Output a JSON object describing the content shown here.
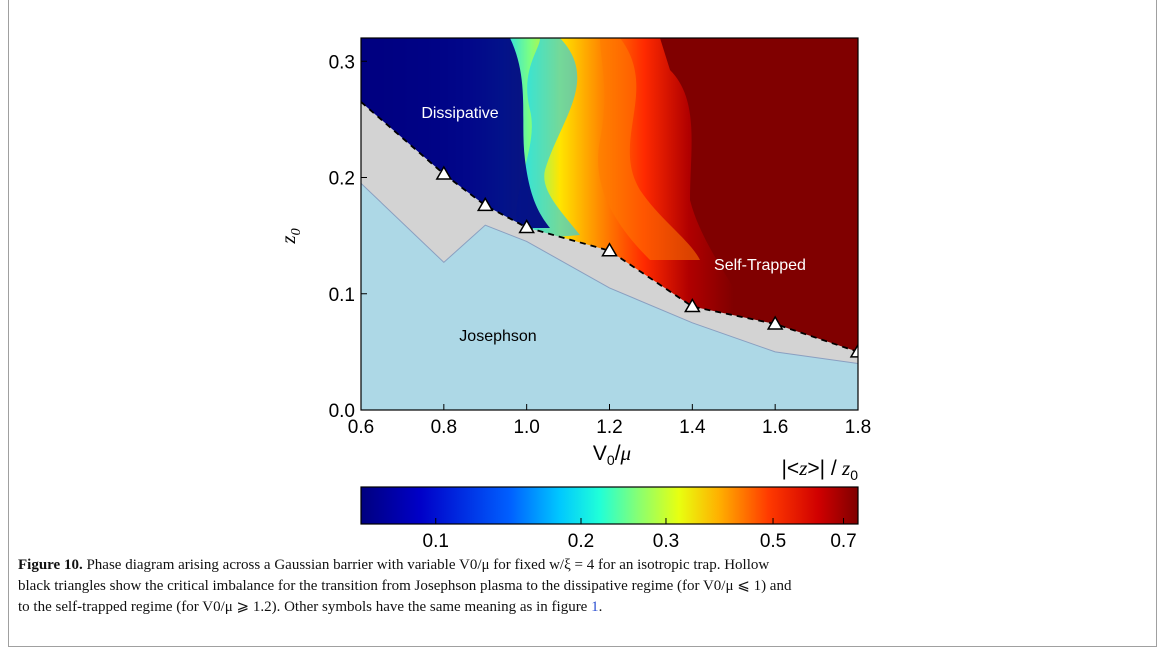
{
  "chart_data": {
    "type": "heatmap",
    "xlabel": "V0/μ",
    "ylabel": "z0",
    "xlim": [
      0.6,
      1.8
    ],
    "ylim": [
      0.0,
      0.32
    ],
    "x_ticks": [
      "0.6",
      "0.8",
      "1.0",
      "1.2",
      "1.4",
      "1.6",
      "1.8"
    ],
    "y_ticks": [
      "0.0",
      "0.1",
      "0.2",
      "0.3"
    ],
    "regions": {
      "dissipative": "Dissipative",
      "self_trapped": "Self-Trapped",
      "josephson": "Josephson"
    },
    "critical_imbalance": {
      "x": [
        0.6,
        0.8,
        0.9,
        1.0,
        1.2,
        1.4,
        1.6,
        1.8
      ],
      "y": [
        0.265,
        0.203,
        0.176,
        0.157,
        0.137,
        0.089,
        0.074,
        0.05
      ]
    },
    "josephson_boundary": {
      "x": [
        0.6,
        0.8,
        0.9,
        1.0,
        1.2,
        1.4,
        1.6,
        1.8
      ],
      "y": [
        0.195,
        0.127,
        0.159,
        0.145,
        0.105,
        0.075,
        0.05,
        0.04
      ]
    },
    "colorbar": {
      "label": "|<z>| / z0",
      "scale": "log",
      "range": [
        0.07,
        0.75
      ],
      "ticks": [
        "0.1",
        "0.2",
        "0.3",
        "0.5",
        "0.7"
      ],
      "colormap": "jet"
    },
    "colors": {
      "josephson": "#add8e6",
      "plasma_gap": "#d3d3d3",
      "dissipative": "#000080",
      "self_trapped": "#800000"
    }
  },
  "caption": {
    "label": "Figure 10.",
    "line1": "Phase diagram arising across a Gaussian barrier with variable V0/μ for fixed w/ξ = 4 for an isotropic trap. Hollow",
    "line2": "black triangles show the critical imbalance for the transition from Josephson plasma to the dissipative regime (for V0/μ ⩽ 1) and",
    "line3_pre": "to the self-trapped regime (for V0/μ ⩾ 1.2). Other symbols have the same meaning as in figure",
    "line3_ref": "1",
    "line3_post": "."
  }
}
